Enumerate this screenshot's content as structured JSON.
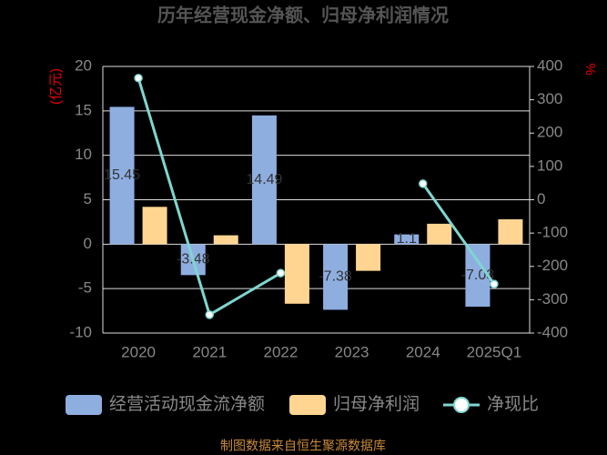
{
  "chart_data": {
    "type": "bar-line",
    "title": "历年经营现金净额、归母净利润情况",
    "ylabel": "(亿元)",
    "y2label": "%",
    "categories": [
      "2020",
      "2021",
      "2022",
      "2023",
      "2024",
      "2025Q1"
    ],
    "ylim": [
      -10,
      20
    ],
    "yticks": [
      -10,
      -5,
      0,
      5,
      10,
      15,
      20
    ],
    "y2lim": [
      -400,
      400
    ],
    "y2ticks": [
      -400,
      -300,
      -200,
      -100,
      0,
      100,
      200,
      300,
      400
    ],
    "grid": true,
    "series": [
      {
        "name": "经营活动现金流净额",
        "kind": "bar",
        "color": "#8eaee0",
        "values": [
          15.45,
          -3.48,
          14.49,
          -7.38,
          1.1,
          -7.03
        ]
      },
      {
        "name": "归母净利润",
        "kind": "bar",
        "color": "#ffd591",
        "values": [
          4.2,
          1.0,
          -6.7,
          -3.0,
          2.3,
          2.8
        ]
      },
      {
        "name": "净现比",
        "kind": "line",
        "axis": "y2",
        "color": "#7fd6d0",
        "values": [
          365,
          -345,
          -220,
          null,
          48,
          -253
        ]
      }
    ],
    "source": "制图数据来自恒生聚源数据库"
  }
}
